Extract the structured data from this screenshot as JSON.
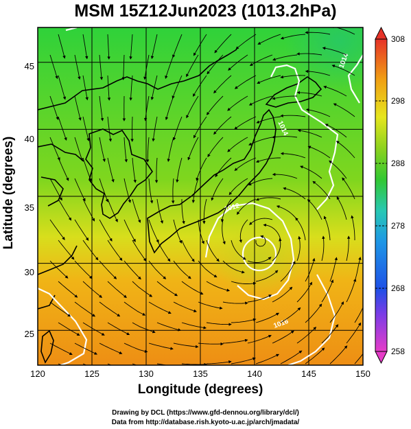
{
  "title": "MSM 15Z12Jun2023 (1013.2hPa)",
  "xlabel": "Longitude (degrees)",
  "ylabel": "Latitude  (degrees)",
  "lon_ticks": [
    "120",
    "125",
    "130",
    "135",
    "140",
    "145",
    "150"
  ],
  "lat_ticks": [
    "25",
    "30",
    "35",
    "40",
    "45"
  ],
  "colorbar_ticks": [
    "308",
    "298",
    "288",
    "278",
    "268",
    "258"
  ],
  "contour_labels": [
    "1014",
    "1014",
    "1012",
    "1016"
  ],
  "footer": {
    "line1": "Drawing by DCL (https://www.gfd-dennou.org/library/dcl/)",
    "line2": "Data from http://database.rish.kyoto-u.ac.jp/arch/jmadata/"
  },
  "map": {
    "lon_range": [
      120,
      150
    ],
    "lat_range": [
      22.4,
      47.6
    ],
    "grid_lon": [
      125,
      130,
      135,
      140,
      145
    ],
    "grid_lat": [
      25,
      30,
      35,
      40,
      45
    ],
    "colorbar_range": [
      258,
      308
    ],
    "cyclone_center": [
      140.5,
      31.5
    ]
  },
  "colors": {
    "cold": "#e63cc8",
    "cool": "#1e50e6",
    "mid_cool": "#28c8e6",
    "mild": "#32c832",
    "warm": "#e6e61e",
    "hot": "#f08c14",
    "hottest": "#e63228",
    "contour": "#ffffff",
    "streamline": "#000000"
  }
}
